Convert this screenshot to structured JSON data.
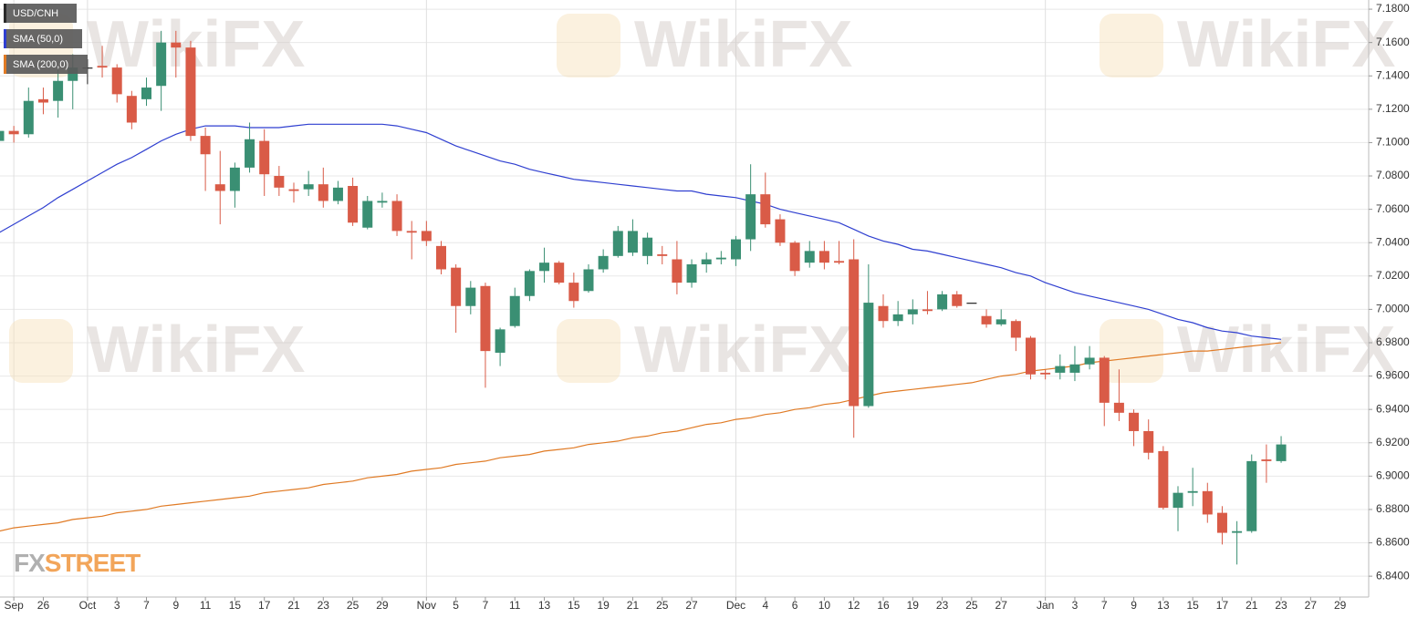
{
  "chart_data": {
    "type": "candlestick",
    "watermark": "WikiFX",
    "brand": {
      "prefix": "FX",
      "suffix": "STREET"
    },
    "categories": [
      null,
      "Sep",
      null,
      "26",
      null,
      null,
      "Oct",
      null,
      "3",
      null,
      "7",
      null,
      "9",
      null,
      "11",
      null,
      "15",
      null,
      "17",
      null,
      "21",
      null,
      "23",
      null,
      "25",
      null,
      "29",
      null,
      null,
      "Nov",
      null,
      "5",
      null,
      "7",
      null,
      "11",
      null,
      "13",
      null,
      "15",
      null,
      "19",
      null,
      "21",
      null,
      "25",
      null,
      "27",
      null,
      null,
      "Dec",
      null,
      "4",
      null,
      "6",
      null,
      "10",
      null,
      "12",
      null,
      "16",
      null,
      "19",
      null,
      "23",
      null,
      "25",
      null,
      "27",
      null,
      null,
      "Jan",
      null,
      "3",
      null,
      "7",
      null,
      "9",
      null,
      "13",
      null,
      "15",
      null,
      "17",
      null,
      "21",
      null,
      "23",
      null,
      "27",
      null,
      "29"
    ],
    "series": [
      {
        "name": "USD/CNH",
        "up_color": "#3a8f73",
        "down_color": "#d95b47",
        "flat_color": "#222222",
        "open": [
          7.101,
          7.107,
          7.105,
          7.126,
          7.125,
          7.137,
          7.145,
          7.146,
          7.145,
          7.128,
          7.126,
          7.134,
          7.16,
          7.157,
          7.104,
          7.075,
          7.071,
          7.085,
          7.101,
          7.08,
          7.072,
          7.072,
          7.075,
          7.065,
          7.074,
          7.049,
          7.064,
          7.065,
          7.047,
          7.047,
          7.038,
          7.025,
          7.002,
          7.014,
          6.974,
          6.99,
          7.008,
          7.023,
          7.028,
          7.016,
          7.011,
          7.024,
          7.032,
          7.034,
          7.032,
          7.033,
          7.03,
          7.016,
          7.027,
          7.03,
          7.03,
          7.042,
          7.069,
          7.054,
          7.04,
          7.028,
          7.035,
          7.029,
          7.03,
          6.942,
          7.002,
          6.993,
          6.997,
          7.0,
          7.0,
          7.009,
          7.004,
          6.996,
          6.991,
          6.993,
          6.983,
          6.962,
          6.962,
          6.962,
          6.967,
          6.971,
          6.944,
          6.938,
          6.927,
          6.915,
          6.881,
          6.89,
          6.891,
          6.878,
          6.866,
          6.867,
          6.91,
          6.909,
          null,
          null,
          null,
          null
        ],
        "high": [
          7.125,
          7.11,
          7.133,
          7.133,
          7.144,
          7.153,
          7.15,
          7.158,
          7.147,
          7.131,
          7.139,
          7.167,
          7.167,
          7.161,
          7.109,
          7.095,
          7.088,
          7.112,
          7.108,
          7.086,
          7.076,
          7.083,
          7.085,
          7.077,
          7.079,
          7.068,
          7.07,
          7.069,
          7.053,
          7.053,
          7.041,
          7.027,
          7.017,
          7.016,
          6.989,
          7.013,
          7.024,
          7.037,
          7.029,
          7.022,
          7.027,
          7.036,
          7.05,
          7.054,
          7.046,
          7.038,
          7.041,
          7.03,
          7.034,
          7.035,
          7.044,
          7.087,
          7.082,
          7.057,
          7.041,
          7.041,
          7.041,
          7.041,
          7.042,
          7.027,
          7.009,
          7.005,
          7.006,
          7.011,
          7.011,
          7.011,
          7.004,
          7.0,
          7.0,
          6.994,
          6.984,
          6.964,
          6.973,
          6.978,
          6.978,
          6.972,
          6.964,
          6.94,
          6.934,
          6.918,
          6.894,
          6.905,
          6.896,
          6.882,
          6.873,
          6.913,
          6.919,
          6.924,
          null,
          null,
          null,
          null
        ],
        "low": [
          7.098,
          7.1,
          7.103,
          7.117,
          7.115,
          7.12,
          7.135,
          7.139,
          7.124,
          7.108,
          7.122,
          7.119,
          7.139,
          7.101,
          7.071,
          7.051,
          7.061,
          7.082,
          7.068,
          7.068,
          7.064,
          7.068,
          7.061,
          7.063,
          7.05,
          7.048,
          7.061,
          7.044,
          7.03,
          7.038,
          7.021,
          6.986,
          6.997,
          6.953,
          6.966,
          6.989,
          7.005,
          7.016,
          7.015,
          7.001,
          7.01,
          7.022,
          7.031,
          7.032,
          7.027,
          7.027,
          7.009,
          7.013,
          7.022,
          7.027,
          7.026,
          7.035,
          7.049,
          7.038,
          7.02,
          7.025,
          7.024,
          7.027,
          6.923,
          6.941,
          6.989,
          6.99,
          6.991,
          6.997,
          6.999,
          7.001,
          7.004,
          6.989,
          6.99,
          6.975,
          6.958,
          6.958,
          6.958,
          6.957,
          6.964,
          6.93,
          6.933,
          6.918,
          6.91,
          6.88,
          6.867,
          6.882,
          6.872,
          6.859,
          6.847,
          6.866,
          6.896,
          6.908,
          null,
          null,
          null,
          null
        ],
        "close": [
          7.107,
          7.105,
          7.125,
          7.124,
          7.137,
          7.145,
          7.145,
          7.145,
          7.129,
          7.112,
          7.133,
          7.16,
          7.157,
          7.104,
          7.093,
          7.071,
          7.085,
          7.102,
          7.081,
          7.073,
          7.071,
          7.075,
          7.065,
          7.073,
          7.052,
          7.065,
          7.065,
          7.047,
          7.046,
          7.041,
          7.024,
          7.002,
          7.013,
          6.975,
          6.988,
          7.008,
          7.023,
          7.028,
          7.016,
          7.005,
          7.024,
          7.032,
          7.047,
          7.047,
          7.043,
          7.032,
          7.016,
          7.027,
          7.03,
          7.031,
          7.042,
          7.069,
          7.051,
          7.04,
          7.023,
          7.035,
          7.028,
          7.028,
          6.942,
          7.004,
          6.993,
          6.997,
          7.0,
          6.999,
          7.009,
          7.002,
          7.004,
          6.991,
          6.994,
          6.983,
          6.961,
          6.961,
          6.966,
          6.967,
          6.971,
          6.944,
          6.938,
          6.927,
          6.914,
          6.881,
          6.89,
          6.891,
          6.877,
          6.866,
          6.867,
          6.909,
          6.909,
          6.919,
          null,
          null,
          null,
          null
        ]
      },
      {
        "name": "SMA (50,0)",
        "type": "line",
        "color": "#2f3fd0",
        "values": [
          7.046,
          7.051,
          7.056,
          7.061,
          7.067,
          7.072,
          7.077,
          7.082,
          7.087,
          7.091,
          7.096,
          7.101,
          7.105,
          7.108,
          7.11,
          7.11,
          7.11,
          7.109,
          7.109,
          7.109,
          7.11,
          7.111,
          7.111,
          7.111,
          7.111,
          7.111,
          7.111,
          7.11,
          7.108,
          7.106,
          7.102,
          7.098,
          7.095,
          7.092,
          7.089,
          7.087,
          7.084,
          7.082,
          7.08,
          7.078,
          7.077,
          7.076,
          7.075,
          7.074,
          7.073,
          7.072,
          7.071,
          7.071,
          7.069,
          7.068,
          7.067,
          7.065,
          7.063,
          7.06,
          7.058,
          7.056,
          7.054,
          7.052,
          7.048,
          7.044,
          7.041,
          7.039,
          7.036,
          7.035,
          7.033,
          7.031,
          7.029,
          7.027,
          7.025,
          7.022,
          7.02,
          7.016,
          7.013,
          7.01,
          7.008,
          7.006,
          7.004,
          7.002,
          7.0,
          6.997,
          6.994,
          6.992,
          6.989,
          6.987,
          6.986,
          6.984,
          6.983,
          6.982,
          null,
          null,
          null,
          null
        ]
      },
      {
        "name": "SMA (200,0)",
        "type": "line",
        "color": "#e07a24",
        "values": [
          6.867,
          6.869,
          6.87,
          6.871,
          6.872,
          6.874,
          6.875,
          6.876,
          6.878,
          6.879,
          6.88,
          6.882,
          6.883,
          6.884,
          6.885,
          6.886,
          6.887,
          6.888,
          6.89,
          6.891,
          6.892,
          6.893,
          6.895,
          6.896,
          6.897,
          6.899,
          6.9,
          6.901,
          6.903,
          6.904,
          6.905,
          6.907,
          6.908,
          6.909,
          6.911,
          6.912,
          6.913,
          6.915,
          6.916,
          6.917,
          6.919,
          6.92,
          6.921,
          6.923,
          6.924,
          6.926,
          6.927,
          6.929,
          6.931,
          6.932,
          6.934,
          6.935,
          6.937,
          6.938,
          6.94,
          6.941,
          6.943,
          6.944,
          6.946,
          6.948,
          6.95,
          6.951,
          6.952,
          6.953,
          6.954,
          6.955,
          6.956,
          6.958,
          6.96,
          6.961,
          6.963,
          6.964,
          6.965,
          6.966,
          6.968,
          6.969,
          6.97,
          6.971,
          6.972,
          6.973,
          6.974,
          6.975,
          6.975,
          6.976,
          6.977,
          6.978,
          6.979,
          6.98,
          null,
          null,
          null,
          null
        ]
      }
    ],
    "ylim": [
      6.8275,
      7.1855
    ],
    "yticks": [
      {
        "value": 6.84,
        "label": "6.8400"
      },
      {
        "value": 6.86,
        "label": "6.8600"
      },
      {
        "value": 6.88,
        "label": "6.8800"
      },
      {
        "value": 6.9,
        "label": "6.9000"
      },
      {
        "value": 6.92,
        "label": "6.9200"
      },
      {
        "value": 6.94,
        "label": "6.9400"
      },
      {
        "value": 6.96,
        "label": "6.9600"
      },
      {
        "value": 6.98,
        "label": "6.9800"
      },
      {
        "value": 7.0,
        "label": "7.0000"
      },
      {
        "value": 7.02,
        "label": "7.0200"
      },
      {
        "value": 7.04,
        "label": "7.0400"
      },
      {
        "value": 7.06,
        "label": "7.0600"
      },
      {
        "value": 7.08,
        "label": "7.0800"
      },
      {
        "value": 7.1,
        "label": "7.1000"
      },
      {
        "value": 7.12,
        "label": "7.1200"
      },
      {
        "value": 7.14,
        "label": "7.1400"
      },
      {
        "value": 7.16,
        "label": "7.1600"
      },
      {
        "value": 7.18,
        "label": "7.1800"
      }
    ],
    "grid": true
  }
}
